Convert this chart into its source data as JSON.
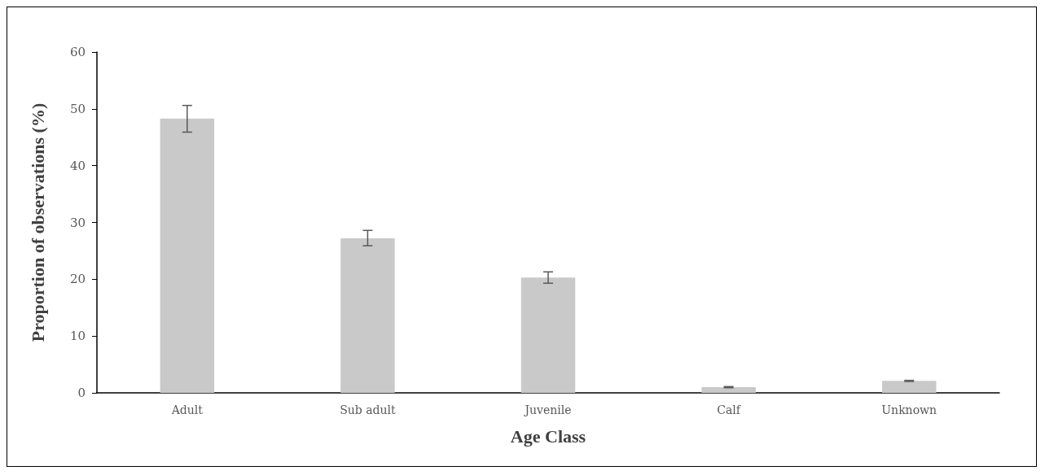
{
  "chart_data": {
    "type": "bar",
    "xlabel": "Age Class",
    "ylabel": "Proportion of observations (%)",
    "categories": [
      "Adult",
      "Sub adult",
      "Juvenile",
      "Calf",
      "Unknown"
    ],
    "values": [
      48.3,
      27.2,
      20.3,
      1.0,
      2.1
    ],
    "errors": [
      [
        45.9,
        50.6
      ],
      [
        25.9,
        28.6
      ],
      [
        19.3,
        21.3
      ],
      [
        0.9,
        1.1
      ],
      [
        2.0,
        2.2
      ]
    ],
    "color": "#c9c9c9",
    "ylim": [
      0,
      60
    ],
    "yticks": [
      0,
      10,
      20,
      30,
      40,
      50,
      60
    ],
    "grid": false
  }
}
